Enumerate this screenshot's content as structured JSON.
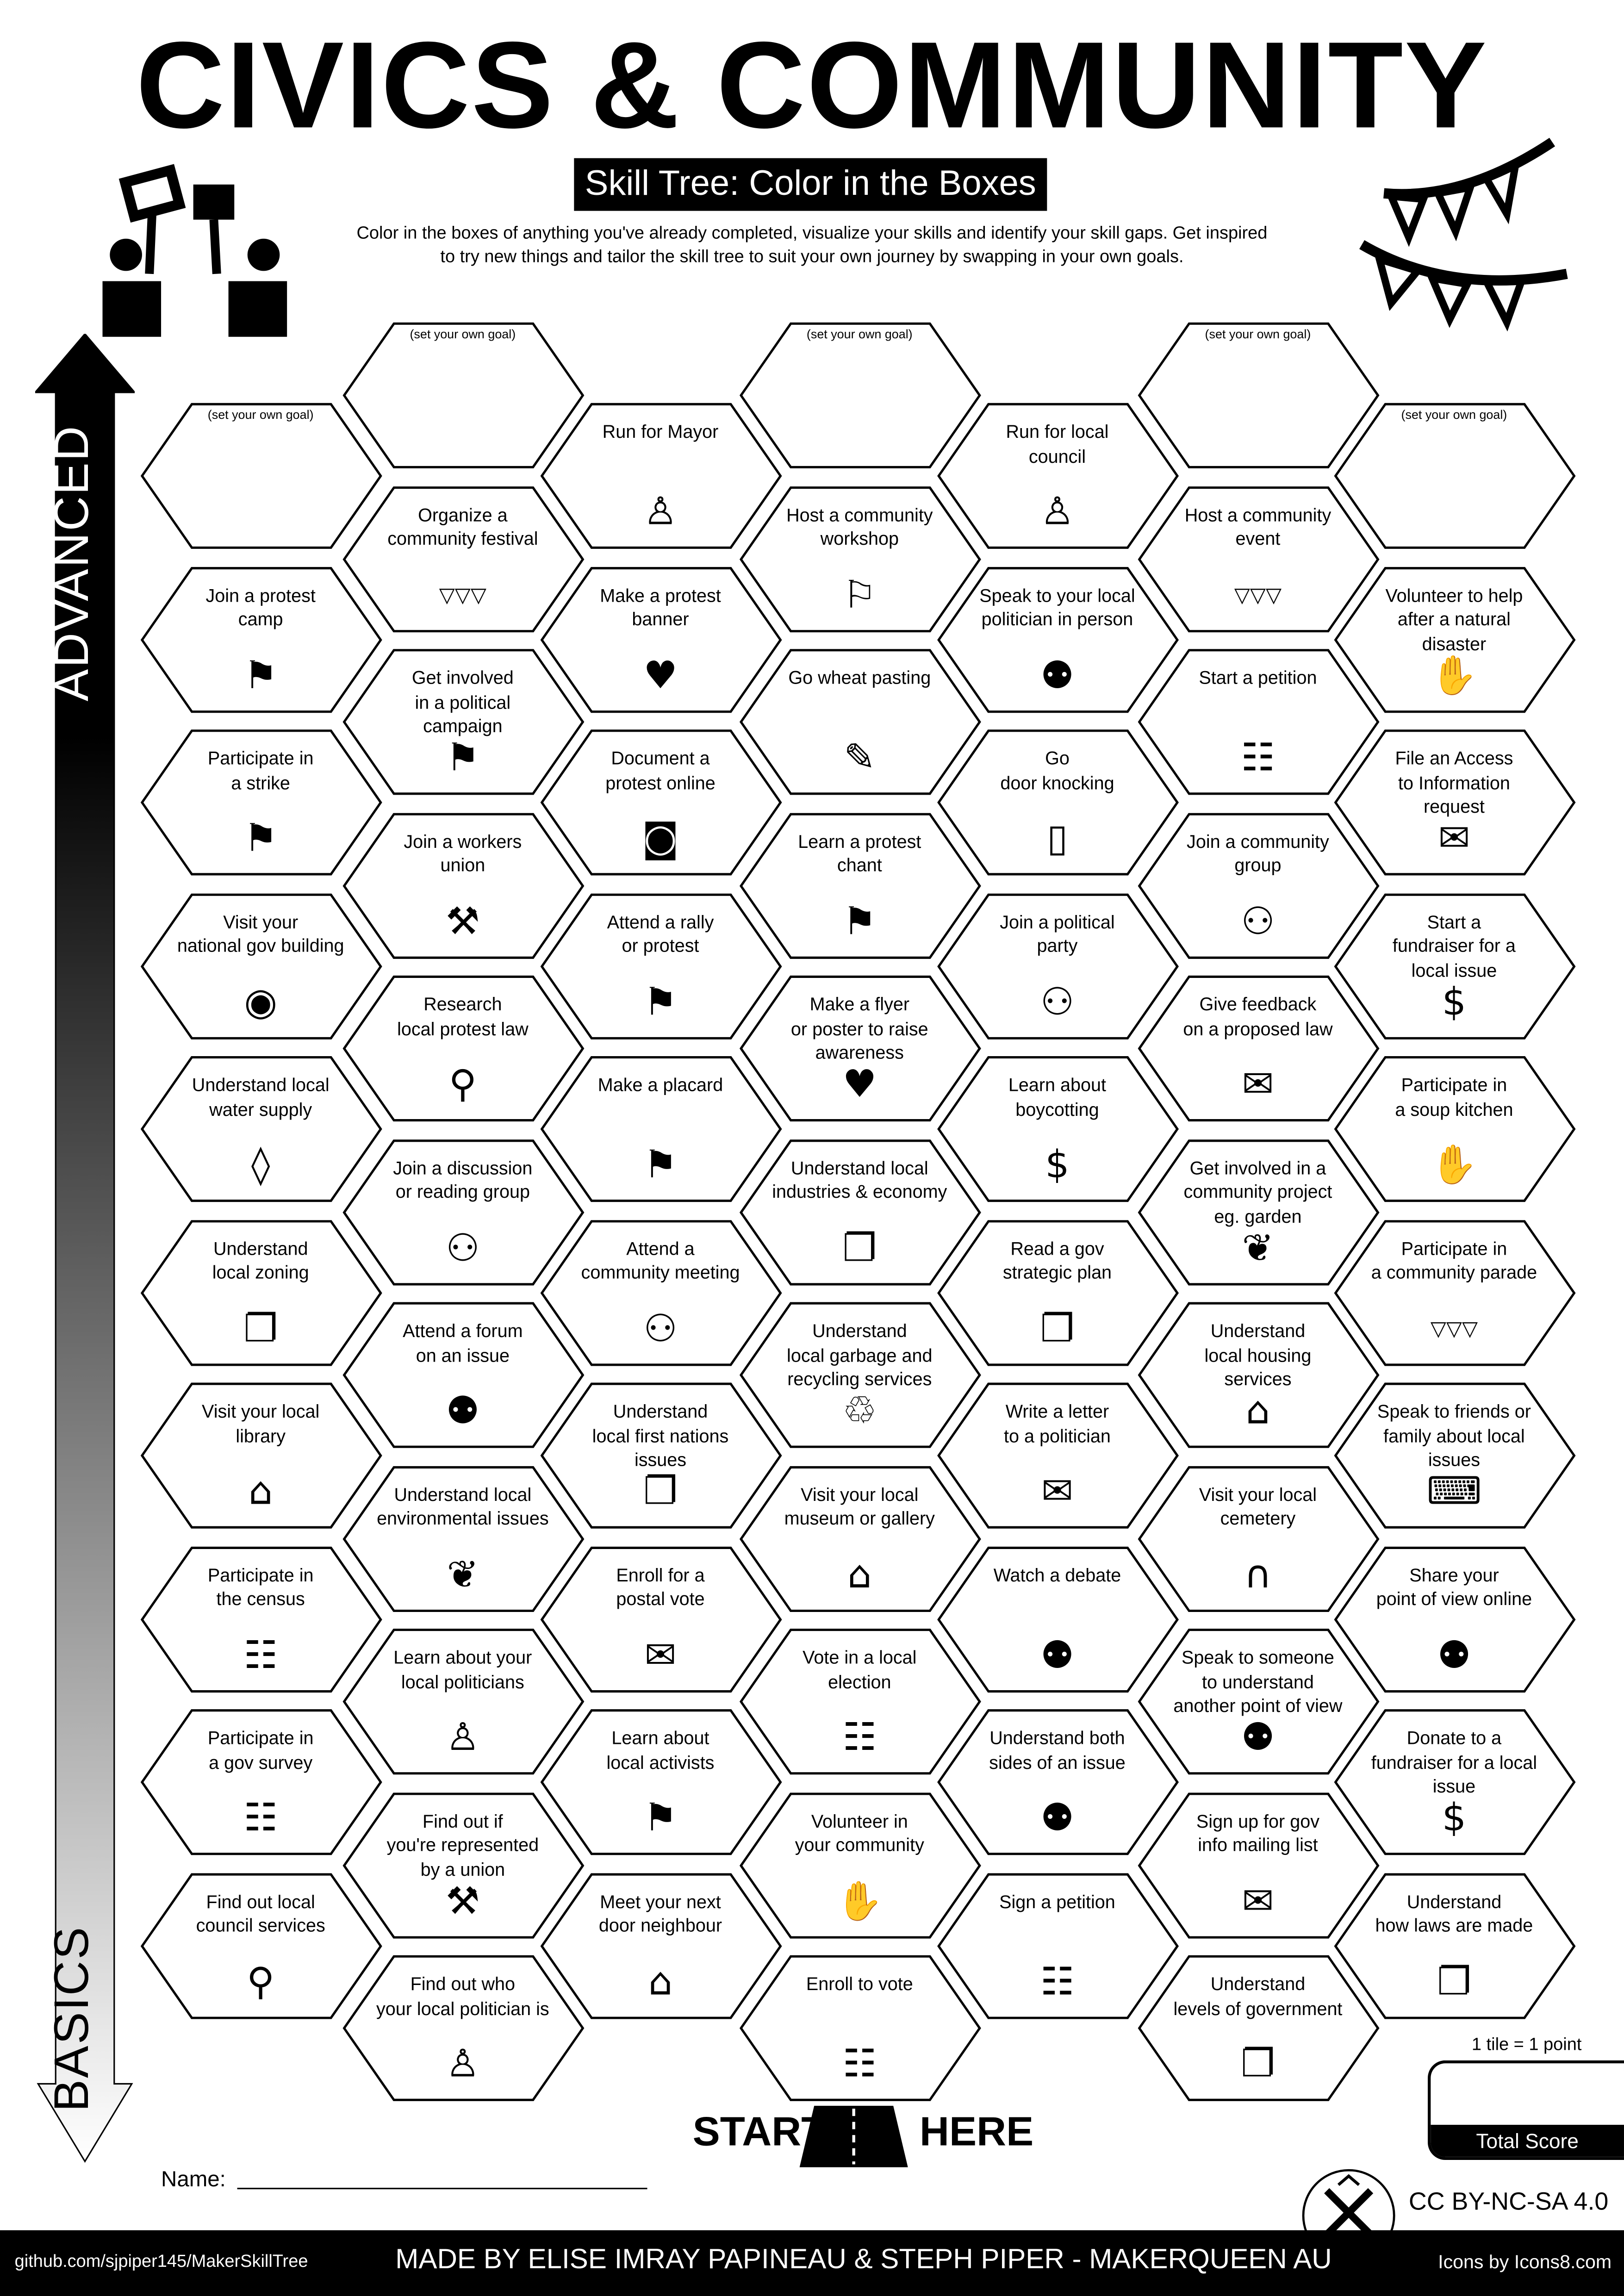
{
  "header": {
    "title": "CIVICS & COMMUNITY",
    "subtitle": "Skill Tree: Color in the Boxes",
    "description": "Color in the boxes of anything you've already completed, visualize your skills and identify your skill gaps.  Get inspired\nto try new things and tailor the skill tree to suit your own journey by swapping in your own goals.",
    "left_icon": "protest-signs-icon",
    "right_icon": "bunting-icon"
  },
  "axis": {
    "top_label": "ADVANCED",
    "bottom_label": "BASICS"
  },
  "goal_placeholder": "(set your own goal)",
  "columns": [
    {
      "tiles": [
        {
          "goal": true
        },
        {
          "label": "Join a protest\ncamp",
          "icon": "protest-signs"
        },
        {
          "label": "Participate in\na strike",
          "icon": "protest-signs"
        },
        {
          "label": "Visit your\nnational gov building",
          "icon": "location-pin"
        },
        {
          "label": "Understand local\nwater supply",
          "icon": "water-drop"
        },
        {
          "label": "Understand\nlocal zoning",
          "icon": "book-hand"
        },
        {
          "label": "Visit your local\nlibrary",
          "icon": "public-building"
        },
        {
          "label": "Participate in\nthe census",
          "icon": "clipboard"
        },
        {
          "label": "Participate in\na gov survey",
          "icon": "clipboard"
        },
        {
          "label": "Find out local\ncouncil services",
          "icon": "search"
        }
      ]
    },
    {
      "tiles": [
        {
          "goal": true
        },
        {
          "label": "Organize a\ncommunity festival",
          "icon": "bunting"
        },
        {
          "label": "Get involved\nin a political campaign",
          "icon": "protest-signs"
        },
        {
          "label": "Join a workers\nunion",
          "icon": "wrench-hand"
        },
        {
          "label": "Research\nlocal protest law",
          "icon": "search"
        },
        {
          "label": "Join a discussion\nor reading group",
          "icon": "meeting"
        },
        {
          "label": "Attend a forum\non an issue",
          "icon": "chat-people"
        },
        {
          "label": "Understand local\nenvironmental issues",
          "icon": "plant"
        },
        {
          "label": "Learn about your\nlocal politicians",
          "icon": "podium"
        },
        {
          "label": "Find out if\nyou're represented\nby a union",
          "icon": "wrench-hand"
        },
        {
          "label": "Find out who\nyour local politician is",
          "icon": "podium"
        }
      ]
    },
    {
      "tiles": [
        {
          "label": "Run for Mayor",
          "icon": "podium"
        },
        {
          "label": "Make a protest\nbanner",
          "icon": "banner"
        },
        {
          "label": "Document a\nprotest online",
          "icon": "camera"
        },
        {
          "label": "Attend a rally\nor protest",
          "icon": "protest-signs"
        },
        {
          "label": "Make a placard",
          "icon": "protest-signs"
        },
        {
          "label": "Attend a\ncommunity meeting",
          "icon": "meeting"
        },
        {
          "label": "Understand\nlocal first nations\nissues",
          "icon": "book-hand"
        },
        {
          "label": "Enroll for a\npostal vote",
          "icon": "envelope"
        },
        {
          "label": "Learn about\nlocal activists",
          "icon": "protest-signs"
        },
        {
          "label": "Meet your next\ndoor neighbour",
          "icon": "house"
        }
      ]
    },
    {
      "tiles": [
        {
          "goal": true
        },
        {
          "label": "Host a community\nworkshop",
          "icon": "teacher"
        },
        {
          "label": "Go wheat pasting",
          "icon": "paint-brush"
        },
        {
          "label": "Learn a protest\nchant",
          "icon": "protest-signs"
        },
        {
          "label": "Make a flyer\nor poster to raise\nawareness",
          "icon": "banner"
        },
        {
          "label": "Understand local\nindustries & economy",
          "icon": "book-hand"
        },
        {
          "label": "Understand\nlocal garbage and\nrecycling services",
          "icon": "waste-bin"
        },
        {
          "label": "Visit your local\nmuseum or gallery",
          "icon": "public-building"
        },
        {
          "label": "Vote in a local\nelection",
          "icon": "clipboard"
        },
        {
          "label": "Volunteer in\nyour community",
          "icon": "hand-heart"
        },
        {
          "label": "Enroll to vote",
          "icon": "clipboard"
        }
      ]
    },
    {
      "tiles": [
        {
          "label": "Run for local\ncouncil",
          "icon": "podium"
        },
        {
          "label": "Speak to your local\npolitician in person",
          "icon": "chat-people"
        },
        {
          "label": "Go\ndoor knocking",
          "icon": "door"
        },
        {
          "label": "Join a political\nparty",
          "icon": "meeting"
        },
        {
          "label": "Learn about\nboycotting",
          "icon": "money-bag"
        },
        {
          "label": "Read a gov\nstrategic plan",
          "icon": "book-hand"
        },
        {
          "label": "Write a letter\nto a politician",
          "icon": "envelope"
        },
        {
          "label": "Watch a debate",
          "icon": "chat-people"
        },
        {
          "label": "Understand both\nsides of an issue",
          "icon": "chat-people"
        },
        {
          "label": "Sign a petition",
          "icon": "clipboard"
        }
      ]
    },
    {
      "tiles": [
        {
          "goal": true
        },
        {
          "label": "Host a community\nevent",
          "icon": "bunting"
        },
        {
          "label": "Start a petition",
          "icon": "clipboard"
        },
        {
          "label": "Join a community\ngroup",
          "icon": "meeting"
        },
        {
          "label": "Give feedback\non a proposed law",
          "icon": "envelope"
        },
        {
          "label": "Get involved in a\ncommunity project\neg. garden",
          "icon": "plant"
        },
        {
          "label": "Understand\nlocal housing services",
          "icon": "house"
        },
        {
          "label": "Visit your local\ncemetery",
          "icon": "gravestone"
        },
        {
          "label": "Speak to someone\nto understand\nanother point of view",
          "icon": "chat-people"
        },
        {
          "label": "Sign up for gov\ninfo mailing list",
          "icon": "envelope"
        },
        {
          "label": "Understand\nlevels of government",
          "icon": "book-hand"
        }
      ]
    },
    {
      "tiles": [
        {
          "goal": true
        },
        {
          "label": "Volunteer to help\nafter a natural disaster",
          "icon": "hand-heart"
        },
        {
          "label": "File an Access\nto Information request",
          "icon": "envelope"
        },
        {
          "label": "Start a\nfundraiser for a\nlocal issue",
          "icon": "money-bag"
        },
        {
          "label": "Participate in\na soup kitchen",
          "icon": "hand-heart"
        },
        {
          "label": "Participate in\na community parade",
          "icon": "bunting"
        },
        {
          "label": "Speak to friends or\nfamily about local issues",
          "icon": "laptop-people"
        },
        {
          "label": "Share your\npoint of view online",
          "icon": "chat-people"
        },
        {
          "label": "Donate to a\nfundraiser for a local\nissue",
          "icon": "money-bag"
        },
        {
          "label": "Understand\nhow laws are made",
          "icon": "book-hand"
        }
      ]
    }
  ],
  "start": {
    "left": "START",
    "right": "HERE",
    "icon": "road-icon"
  },
  "name_label": "Name:",
  "score": {
    "note": "1 tile = 1 point",
    "label": "Total Score"
  },
  "license": "CC BY-NC-SA 4.0",
  "footer": {
    "repo": "github.com/sjpiper145/MakerSkillTree",
    "credits": "MADE BY ELISE IMRAY PAPINEAU & STEPH PIPER  -  MAKERQUEEN AU",
    "icons_credit": "Icons by Icons8.com"
  }
}
